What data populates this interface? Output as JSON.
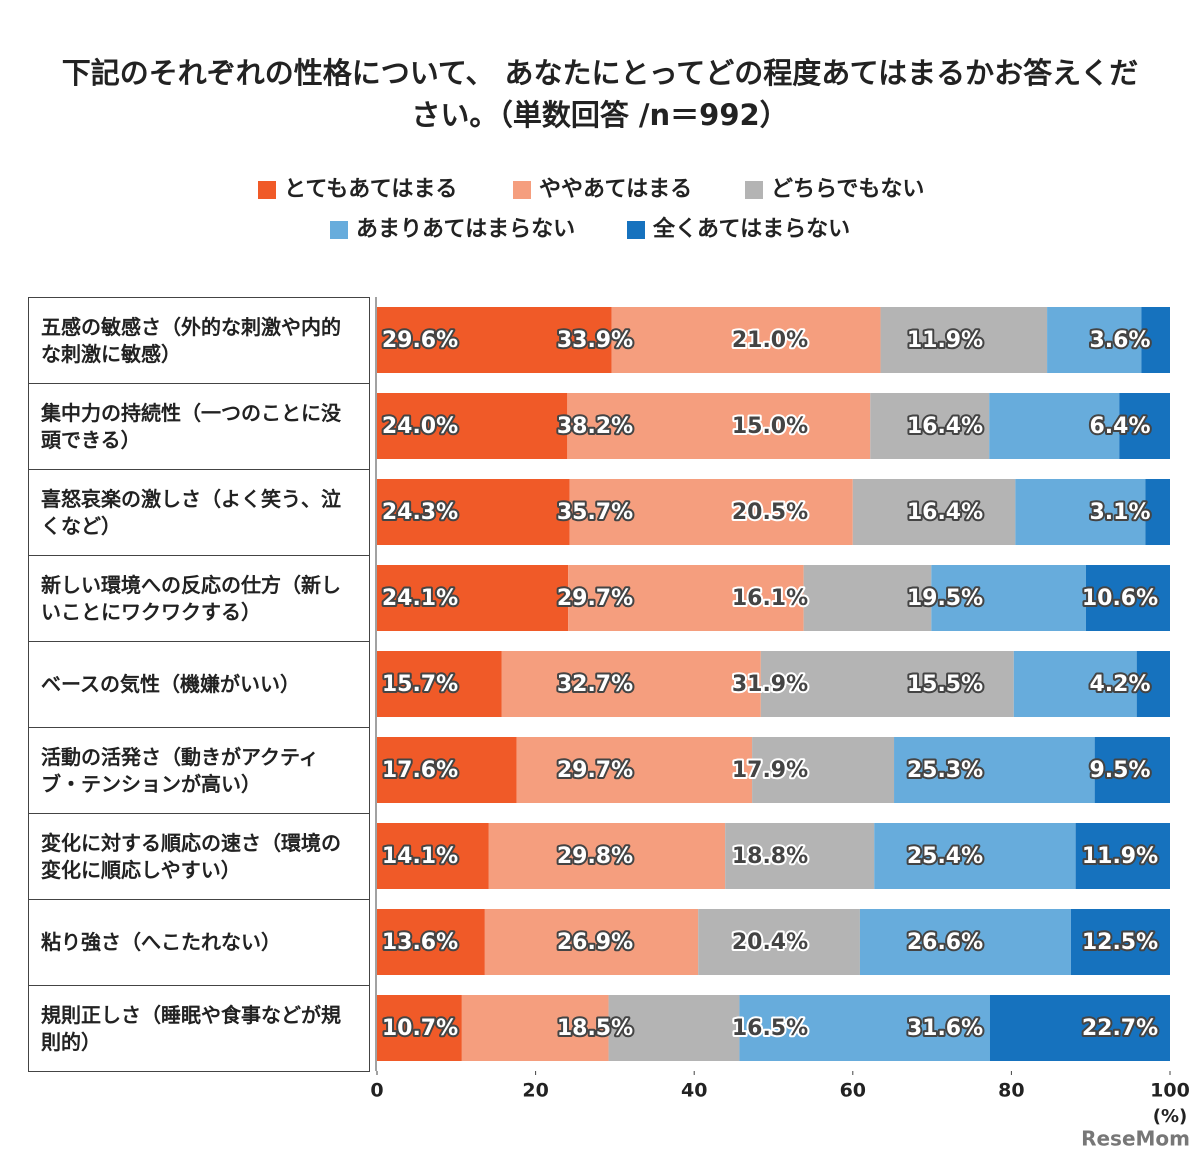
{
  "chart_data": {
    "type": "stacked-bar-horizontal",
    "title": "下記のそれぞれの性格について、 あなたにとってどの程度あてはまるかお答えください。（単数回答 /n＝992）",
    "categories": [
      "五感の敏感さ（外的な刺激や内的な刺激に敏感）",
      "集中力の持続性（一つのことに没頭できる）",
      "喜怒哀楽の激しさ（よく笑う、泣くなど）",
      "新しい環境への反応の仕方（新しいことにワクワクする）",
      "ベースの気性（機嫌がいい）",
      "活動の活発さ（動きがアクティブ・テンションが高い）",
      "変化に対する順応の速さ（環境の変化に順応しやすい）",
      "粘り強さ（へこたれない）",
      "規則正しさ（睡眠や食事などが規則的）"
    ],
    "series": [
      {
        "name": "とてもあてはまる",
        "color": "#f05a28",
        "values": [
          29.6,
          24.0,
          24.3,
          24.1,
          15.7,
          17.6,
          14.1,
          13.6,
          10.7
        ],
        "value_labels": [
          "29.6%",
          "24.0%",
          "24.3%",
          "24.1%",
          "15.7%",
          "17.6%",
          "14.1%",
          "13.6%",
          "10.7%"
        ]
      },
      {
        "name": "ややあてはまる",
        "color": "#f59e7e",
        "values": [
          33.9,
          38.2,
          35.7,
          29.7,
          32.7,
          29.7,
          29.8,
          26.9,
          18.5
        ],
        "value_labels": [
          "33.9%",
          "38.2%",
          "35.7%",
          "29.7%",
          "32.7%",
          "29.7%",
          "29.8%",
          "26.9%",
          "18.5%"
        ]
      },
      {
        "name": "どちらでもない",
        "color": "#b4b4b4",
        "values": [
          21.0,
          15.0,
          20.5,
          16.1,
          31.9,
          17.9,
          18.8,
          20.4,
          16.5
        ],
        "value_labels": [
          "21.0%",
          "15.0%",
          "20.5%",
          "16.1%",
          "31.9%",
          "17.9%",
          "18.8%",
          "20.4%",
          "16.5%"
        ]
      },
      {
        "name": "あまりあてはまらない",
        "color": "#67acdc",
        "values": [
          11.9,
          16.4,
          16.4,
          19.5,
          15.5,
          25.3,
          25.4,
          26.6,
          31.6
        ],
        "value_labels": [
          "11.9%",
          "16.4%",
          "16.4%",
          "19.5%",
          "15.5%",
          "25.3%",
          "25.4%",
          "26.6%",
          "31.6%"
        ]
      },
      {
        "name": "全くあてはまらない",
        "color": "#1672be",
        "values": [
          3.6,
          6.4,
          3.1,
          10.6,
          4.2,
          9.5,
          11.9,
          12.5,
          22.7
        ],
        "value_labels": [
          "3.6%",
          "6.4%",
          "3.1%",
          "10.6%",
          "4.2%",
          "9.5%",
          "11.9%",
          "12.5%",
          "22.7%"
        ]
      }
    ],
    "xlim": [
      0,
      100
    ],
    "xticks": [
      0,
      20,
      40,
      60,
      80,
      100
    ],
    "x_label": "(%)",
    "watermark": "ReseMom"
  }
}
